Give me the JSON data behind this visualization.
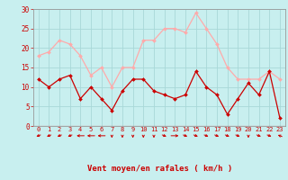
{
  "x": [
    0,
    1,
    2,
    3,
    4,
    5,
    6,
    7,
    8,
    9,
    10,
    11,
    12,
    13,
    14,
    15,
    16,
    17,
    18,
    19,
    20,
    21,
    22,
    23
  ],
  "vent_moyen": [
    12,
    10,
    12,
    13,
    7,
    10,
    7,
    4,
    9,
    12,
    12,
    9,
    8,
    7,
    8,
    14,
    10,
    8,
    3,
    7,
    11,
    8,
    14,
    2
  ],
  "rafales": [
    18,
    19,
    22,
    21,
    18,
    13,
    15,
    10,
    15,
    15,
    22,
    22,
    25,
    25,
    24,
    29,
    25,
    21,
    15,
    12,
    12,
    12,
    14,
    12
  ],
  "wind_directions": [
    225,
    225,
    225,
    225,
    270,
    270,
    270,
    180,
    180,
    180,
    180,
    180,
    135,
    90,
    135,
    135,
    135,
    135,
    135,
    135,
    180,
    135,
    135,
    315
  ],
  "xlabel": "Vent moyen/en rafales ( km/h )",
  "ylim": [
    0,
    30
  ],
  "yticks": [
    0,
    5,
    10,
    15,
    20,
    25,
    30
  ],
  "bg_color": "#c8efef",
  "grid_color": "#a8d8d8",
  "line_moyen_color": "#cc0000",
  "line_rafales_color": "#ffaaaa",
  "marker_color_moyen": "#cc0000",
  "marker_color_rafales": "#ffaaaa",
  "xlabel_color": "#cc0000",
  "tick_color": "#cc0000",
  "arrow_color": "#cc0000",
  "spine_color": "#999999"
}
